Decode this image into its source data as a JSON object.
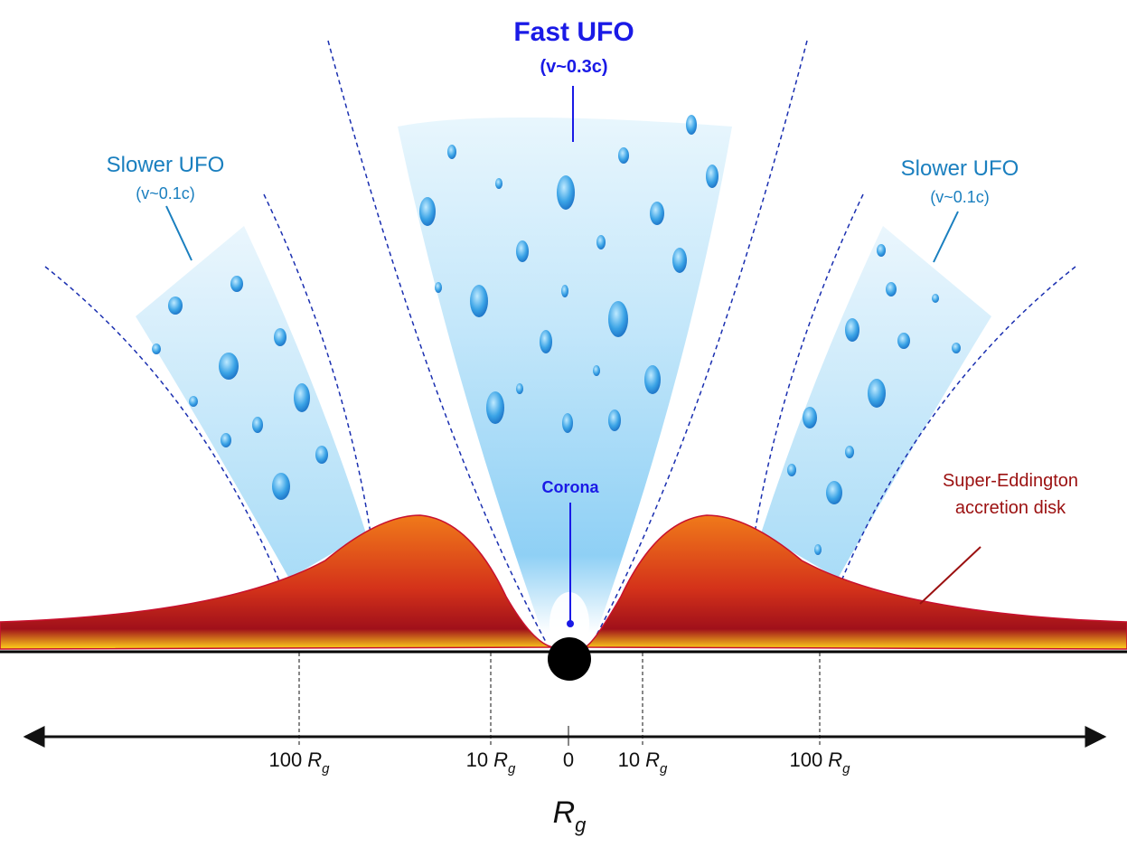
{
  "labels": {
    "fast_ufo": {
      "title": "Fast UFO",
      "speed": "(v~0.3c)"
    },
    "slower_ufo_left": {
      "title": "Slower UFO",
      "speed": "(v~0.1c)"
    },
    "slower_ufo_right": {
      "title": "Slower UFO",
      "speed": "(v~0.1c)"
    },
    "corona": "Corona",
    "disk": {
      "line1": "Super-Eddington",
      "line2": "accretion disk"
    }
  },
  "axis": {
    "label": {
      "symbol": "R",
      "subscript": "g"
    },
    "ticks": [
      {
        "number": "100",
        "symbol": "R",
        "subscript": "g"
      },
      {
        "number": "10",
        "symbol": "R",
        "subscript": "g"
      },
      {
        "number": "0"
      },
      {
        "number": "10",
        "symbol": "R",
        "subscript": "g"
      },
      {
        "number": "100",
        "symbol": "R",
        "subscript": "g"
      }
    ]
  }
}
